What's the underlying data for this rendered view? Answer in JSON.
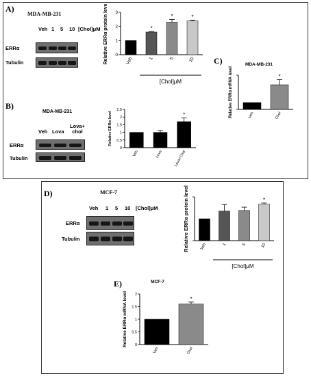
{
  "panels": {
    "A": "A)",
    "B": "B)",
    "C": "C)",
    "D": "D)",
    "E": "E)"
  },
  "blots": {
    "A": {
      "title": "MDA-MB-231",
      "lanes": [
        "Veh",
        "1",
        "5",
        "10"
      ],
      "unit": "[Chol]μM",
      "rows": [
        "ERRα",
        "Tubulin"
      ]
    },
    "B": {
      "title": "MDA-MB-231",
      "lanes": [
        "Veh",
        "Lova",
        "Lova+ chol"
      ],
      "rows": [
        "ERRα",
        "Tubulin"
      ]
    },
    "D": {
      "title": "MCF-7",
      "lanes": [
        "Veh",
        "1",
        "5",
        "10"
      ],
      "unit": "[Chol]μM",
      "rows": [
        "ERRα",
        "Tubulin"
      ]
    }
  },
  "colors": {
    "black": "#000000",
    "dark_gray": "#555555",
    "mid_gray": "#8a8a8a",
    "light_gray": "#c8c8c8"
  },
  "chart_data": [
    {
      "id": "A",
      "type": "bar",
      "categories": [
        "Veh",
        "1",
        "5",
        "10"
      ],
      "values": [
        1.0,
        1.6,
        2.3,
        2.4
      ],
      "errors": [
        0.0,
        0.05,
        0.2,
        0.05
      ],
      "significant": [
        false,
        true,
        true,
        true
      ],
      "bar_colors": [
        "#000000",
        "#555555",
        "#8a8a8a",
        "#c8c8c8"
      ],
      "xlabel": "[Chol]μM",
      "ylabel": "Relative ERRα protein level",
      "ylim": [
        0,
        3
      ],
      "yticks": [
        0,
        1,
        2,
        3
      ]
    },
    {
      "id": "B",
      "type": "bar",
      "categories": [
        "Veh",
        "Lova",
        "Lova+Chol"
      ],
      "values": [
        1.0,
        1.0,
        1.7
      ],
      "errors": [
        0.0,
        0.12,
        0.25
      ],
      "significant": [
        false,
        false,
        true
      ],
      "bar_colors": [
        "#000000",
        "#000000",
        "#000000"
      ],
      "xlabel": "",
      "ylabel": "Relative ERRα level",
      "ylim": [
        0,
        2.5
      ],
      "yticks": [
        0.0,
        0.5,
        1.0,
        1.5,
        2.0,
        2.5
      ]
    },
    {
      "id": "C",
      "type": "bar",
      "title": "MDA-MB-231",
      "categories": [
        "Veh",
        "Chol"
      ],
      "values": [
        1.0,
        3.6
      ],
      "errors": [
        0.0,
        0.75
      ],
      "significant": [
        false,
        true
      ],
      "bar_colors": [
        "#000000",
        "#8a8a8a"
      ],
      "xlabel": "",
      "ylabel": "Relative ERRα mRNA level",
      "ylim": [
        0,
        5
      ],
      "yticks": []
    },
    {
      "id": "D",
      "type": "bar",
      "categories": [
        "Veh",
        "1",
        "5",
        "10"
      ],
      "values": [
        1.0,
        1.35,
        1.38,
        1.67
      ],
      "errors": [
        0.0,
        0.3,
        0.15,
        0.05
      ],
      "significant": [
        false,
        false,
        false,
        true
      ],
      "bar_colors": [
        "#000000",
        "#555555",
        "#8a8a8a",
        "#c8c8c8"
      ],
      "xlabel": "[Chol]μM",
      "ylabel": "Relative ERRα protein level",
      "ylim": [
        0,
        2
      ],
      "yticks": []
    },
    {
      "id": "E",
      "type": "bar",
      "title": "MCF-7",
      "categories": [
        "Veh",
        "Chol"
      ],
      "values": [
        1.0,
        1.6
      ],
      "errors": [
        0.0,
        0.08
      ],
      "significant": [
        false,
        true
      ],
      "bar_colors": [
        "#000000",
        "#8a8a8a"
      ],
      "xlabel": "",
      "ylabel": "Relative ERRα mRNA level",
      "ylim": [
        0,
        2.0
      ],
      "yticks": [
        0.0,
        0.5,
        1.0,
        1.5,
        2.0
      ]
    }
  ]
}
